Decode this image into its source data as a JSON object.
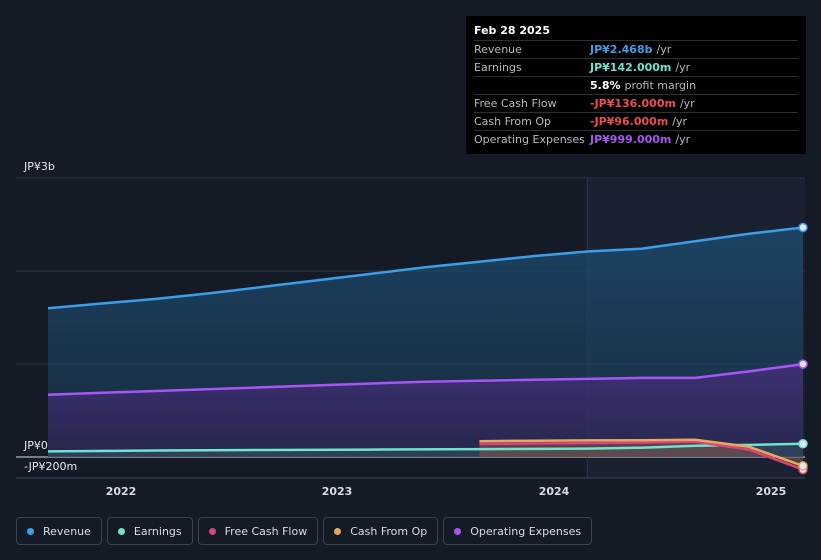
{
  "tooltip": {
    "date": "Feb 28 2025",
    "rows": [
      {
        "label": "Revenue",
        "value": "JP¥2.468b",
        "suffix": "/yr",
        "color": "#3b9ee8"
      },
      {
        "label": "Earnings",
        "value": "JP¥142.000m",
        "suffix": "/yr",
        "color": "#6fe3d0"
      },
      {
        "label": "",
        "value": "5.8%",
        "suffix": "profit margin",
        "color": "#ffffff"
      },
      {
        "label": "Free Cash Flow",
        "value": "-JP¥136.000m",
        "suffix": "/yr",
        "color": "#f04a54"
      },
      {
        "label": "Cash From Op",
        "value": "-JP¥96.000m",
        "suffix": "/yr",
        "color": "#f04a54"
      },
      {
        "label": "Operating Expenses",
        "value": "JP¥999.000m",
        "suffix": "/yr",
        "color": "#a855f7"
      }
    ]
  },
  "legend": [
    {
      "label": "Revenue",
      "color": "#3b9ee8"
    },
    {
      "label": "Earnings",
      "color": "#6fe3d0"
    },
    {
      "label": "Free Cash Flow",
      "color": "#d9457a"
    },
    {
      "label": "Cash From Op",
      "color": "#e8a85c"
    },
    {
      "label": "Operating Expenses",
      "color": "#a855f7"
    }
  ],
  "chart_data": {
    "type": "area",
    "y_tick_labels": [
      "JP¥3b",
      "JP¥0",
      "-JP¥200m"
    ],
    "x_tick_labels": [
      "2022",
      "2023",
      "2024",
      "2025"
    ],
    "ylim": [
      -200,
      3000
    ],
    "y_unit": "JP¥ millions",
    "xlim": [
      2021.67,
      2025.17
    ],
    "highlight_from": 2024.17,
    "series": [
      {
        "name": "Revenue",
        "color": "#3b9ee8",
        "x": [
          2021.67,
          2021.92,
          2022.17,
          2022.42,
          2022.67,
          2022.92,
          2023.17,
          2023.42,
          2023.67,
          2023.92,
          2024.17,
          2024.42,
          2024.67,
          2024.92,
          2025.17
        ],
        "values": [
          1600,
          1650,
          1700,
          1760,
          1830,
          1900,
          1970,
          2040,
          2100,
          2160,
          2210,
          2240,
          2320,
          2400,
          2468
        ]
      },
      {
        "name": "Operating Expenses",
        "color": "#a855f7",
        "x": [
          2021.67,
          2021.92,
          2022.17,
          2022.42,
          2022.67,
          2022.92,
          2023.17,
          2023.42,
          2023.67,
          2023.92,
          2024.17,
          2024.42,
          2024.67,
          2024.92,
          2025.17
        ],
        "values": [
          670,
          690,
          710,
          730,
          750,
          770,
          790,
          810,
          820,
          830,
          840,
          850,
          850,
          920,
          999
        ]
      },
      {
        "name": "Earnings",
        "color": "#6fe3d0",
        "x": [
          2021.67,
          2022.17,
          2022.67,
          2023.17,
          2023.67,
          2024.17,
          2024.42,
          2024.67,
          2024.92,
          2025.17
        ],
        "values": [
          60,
          70,
          75,
          80,
          85,
          90,
          100,
          120,
          130,
          142
        ]
      },
      {
        "name": "Free Cash Flow",
        "color": "#d9457a",
        "x": [
          2023.67,
          2023.92,
          2024.17,
          2024.42,
          2024.67,
          2024.92,
          2025.17
        ],
        "values": [
          140,
          145,
          150,
          155,
          165,
          80,
          -136
        ]
      },
      {
        "name": "Cash From Op",
        "color": "#e8a85c",
        "x": [
          2023.67,
          2023.92,
          2024.17,
          2024.42,
          2024.67,
          2024.92,
          2025.17
        ],
        "values": [
          170,
          175,
          178,
          180,
          185,
          110,
          -96
        ]
      }
    ]
  }
}
